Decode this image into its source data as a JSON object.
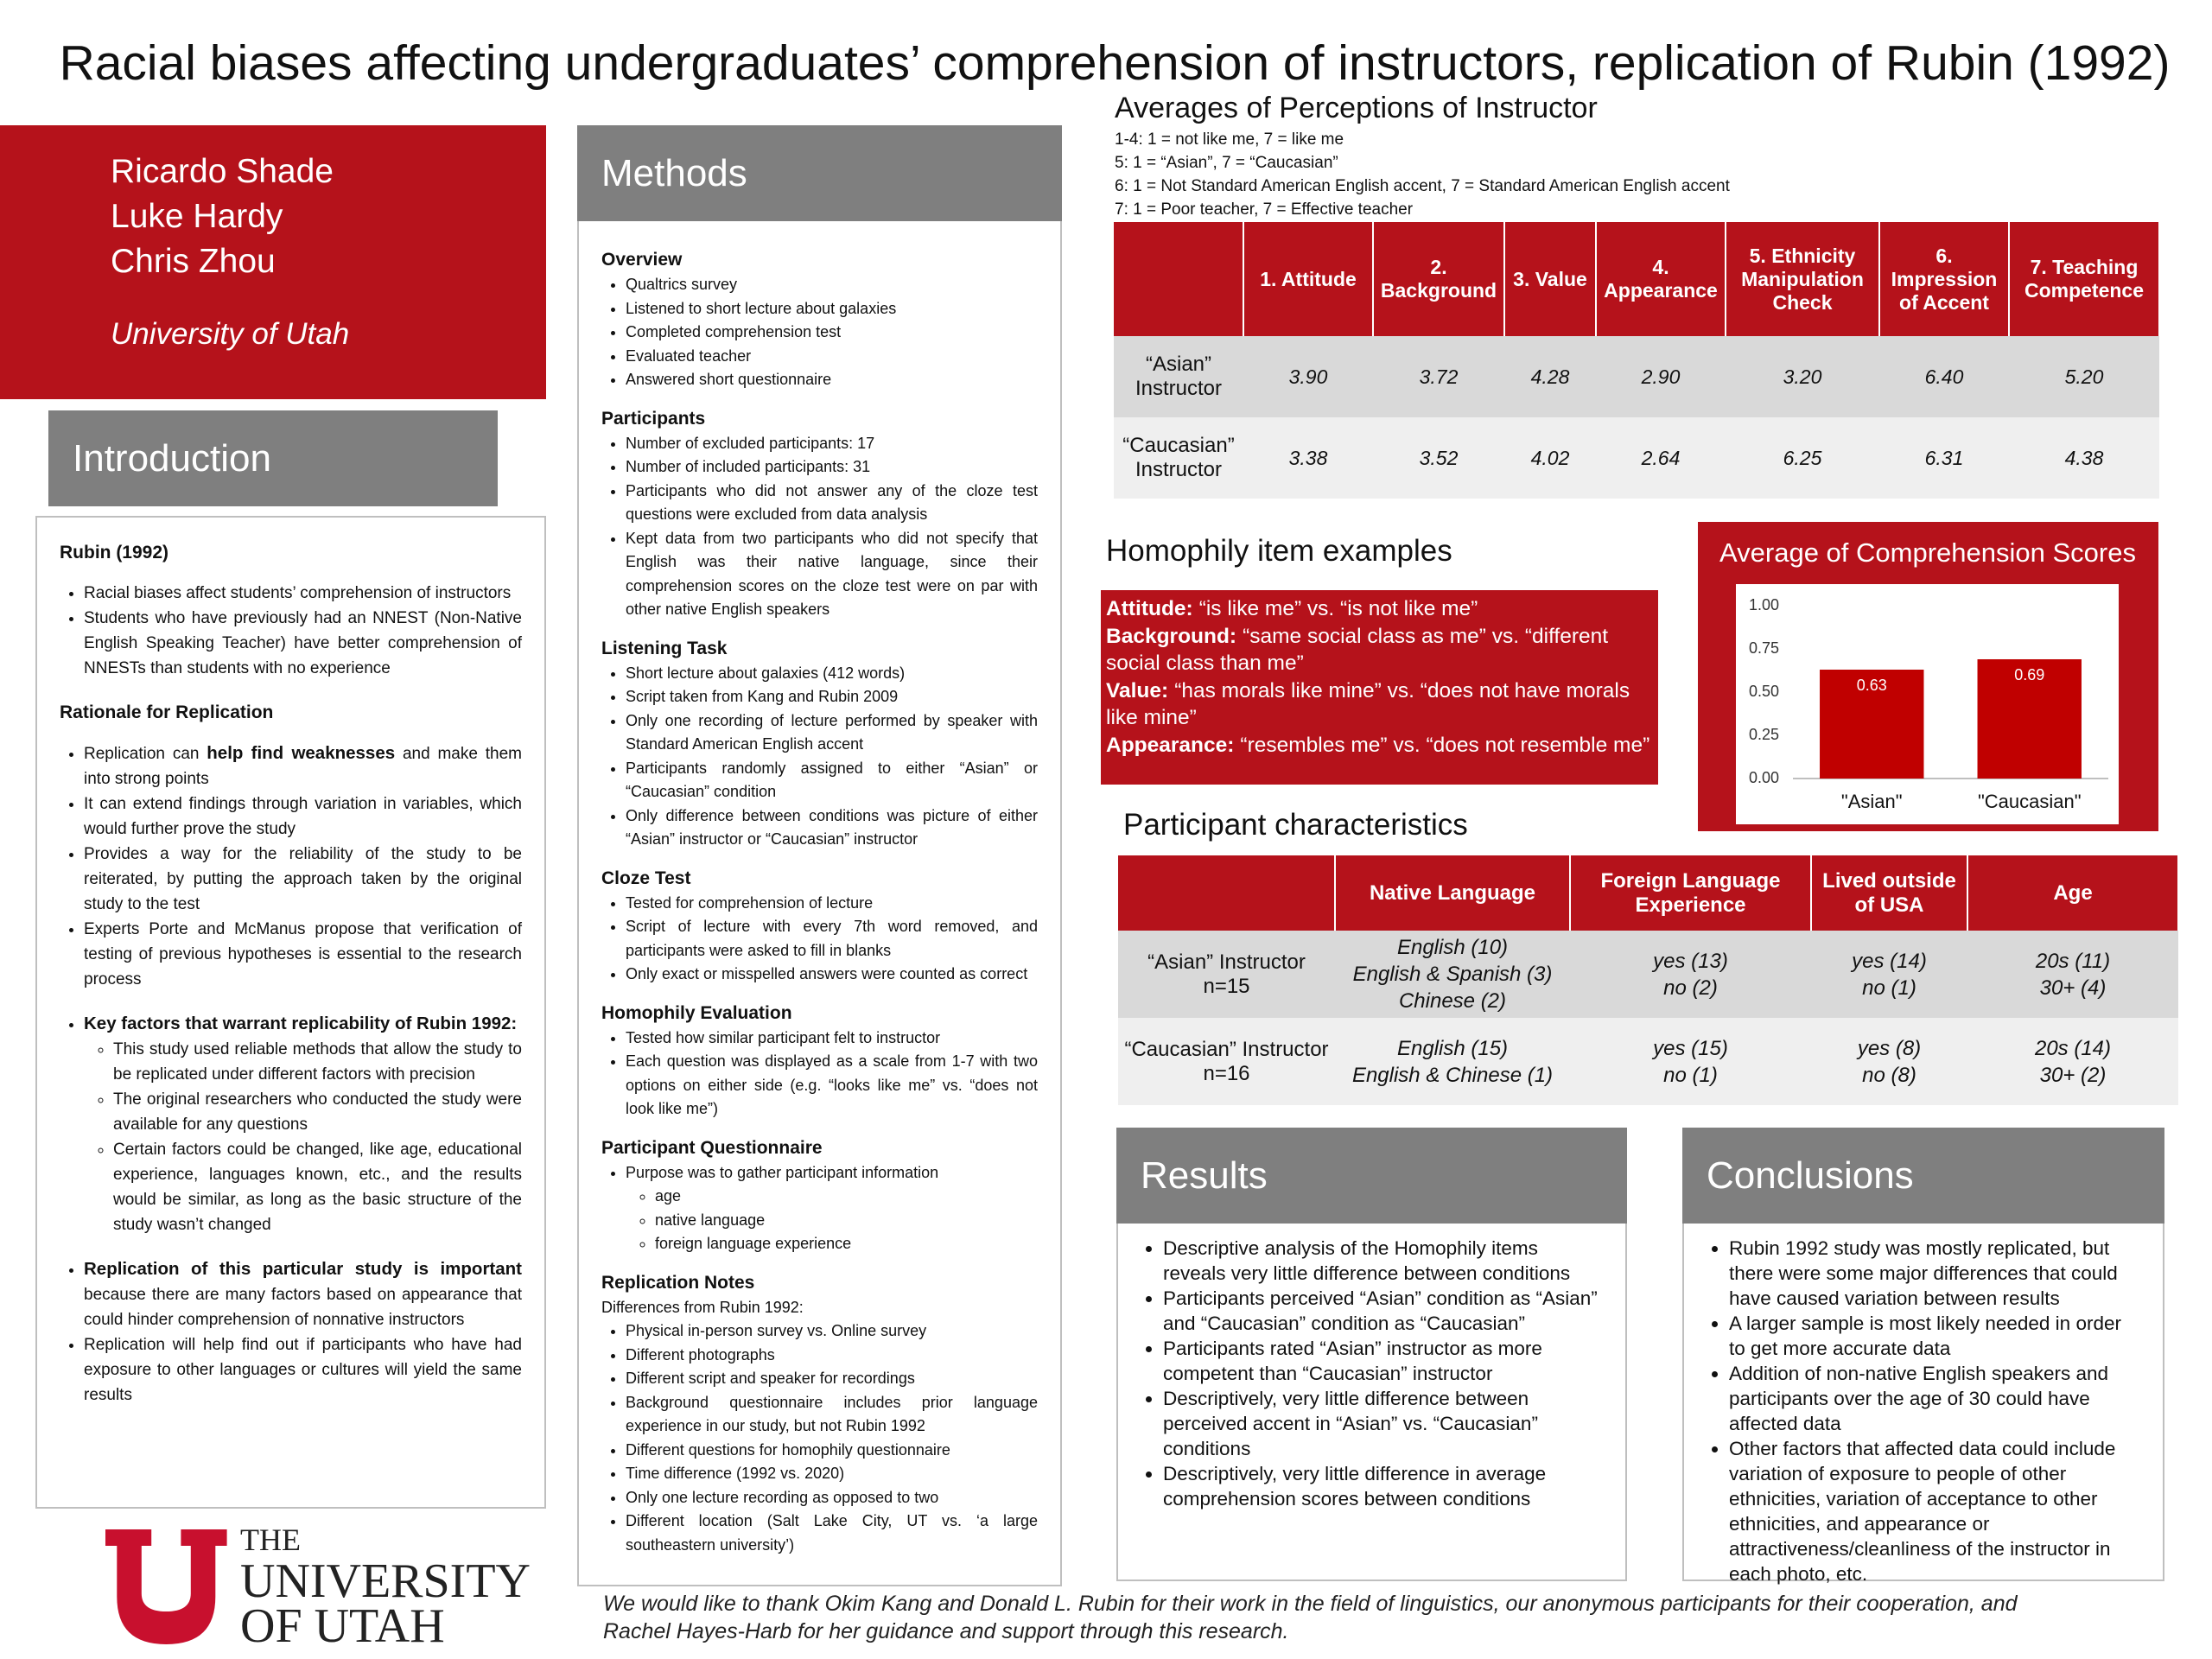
{
  "title": "Racial biases affecting undergraduates’ comprehension of instructors, replication of Rubin (1992)",
  "authors": [
    "Ricardo Shade",
    "Luke Hardy",
    "Chris Zhou"
  ],
  "affiliation": "University of Utah",
  "introduction": {
    "header": "Introduction",
    "blocks": [
      {
        "heading": "Rubin (1992)",
        "items": [
          "Racial biases affect students’ comprehension of instructors",
          "Students who have previously had an NNEST (Non-Native English Speaking Teacher) have better comprehension of NNESTs than students with no experience"
        ]
      },
      {
        "heading": "Rationale for Replication",
        "items": [
          {
            "runs": [
              "Replication can ",
              {
                "bold": "help find weaknesses"
              },
              " and make them into strong points"
            ]
          },
          "It can extend findings through variation in variables, which would further prove the study",
          "Provides a way for the reliability of the study to be reiterated, by putting the approach taken by the original study to the test",
          "Experts Porte and McManus propose that verification of testing of previous hypotheses is essential to the research process"
        ]
      },
      {
        "items": [
          {
            "runs": [
              {
                "bold": "Key factors that warrant replicability of Rubin 1992:"
              }
            ],
            "sub": [
              "This study used reliable methods that allow the study to be replicated under different factors with precision",
              "The original researchers who conducted the study were available for any questions",
              "Certain factors could be changed, like age, educational experience, languages known, etc., and the results would be similar, as long as the basic structure of the study wasn’t changed"
            ]
          }
        ]
      },
      {
        "items": [
          {
            "runs": [
              {
                "bold": "Replication of this particular study is important"
              },
              " because there are many factors based on appearance that could hinder comprehension of nonnative instructors"
            ]
          },
          "Replication will help find out if participants who have had exposure to other languages or cultures will yield the same results"
        ]
      }
    ]
  },
  "methods": {
    "header": "Methods",
    "sections": [
      {
        "heading": "Overview",
        "items": [
          "Qualtrics survey",
          "Listened to short lecture about galaxies",
          "Completed comprehension test",
          "Evaluated teacher",
          "Answered short questionnaire"
        ]
      },
      {
        "heading": "Participants",
        "items": [
          "Number of excluded participants: 17",
          "Number of included participants: 31",
          "Participants who did not answer any of the cloze test questions were excluded from data analysis",
          "Kept data from two participants who did not specify that English was their native language, since their comprehension scores on the cloze test were on par with other native English speakers"
        ]
      },
      {
        "heading": "Listening Task",
        "items": [
          "Short lecture about galaxies (412 words)",
          "Script taken from Kang and Rubin 2009",
          "Only one recording of lecture performed by speaker with Standard American English accent",
          "Participants randomly assigned to either “Asian” or “Caucasian” condition",
          "Only difference between conditions was picture of either “Asian” instructor or “Caucasian” instructor"
        ]
      },
      {
        "heading": "Cloze Test",
        "items": [
          "Tested for comprehension of lecture",
          "Script of lecture with every 7th word removed, and participants were asked to fill in blanks",
          "Only exact or misspelled answers were counted as correct"
        ]
      },
      {
        "heading": "Homophily Evaluation",
        "items": [
          "Tested how similar participant felt to instructor",
          "Each question was displayed as a scale from 1-7 with two options on either side (e.g. “looks like me” vs. “does not look like me”)"
        ]
      },
      {
        "heading": "Participant Questionnaire",
        "items": [
          {
            "runs": [
              "Purpose was to gather participant information"
            ],
            "sub": [
              "age",
              "native language",
              "foreign language experience"
            ]
          }
        ]
      },
      {
        "heading": "Replication Notes",
        "lead": "Differences from Rubin 1992:",
        "items": [
          "Physical in-person survey vs. Online survey",
          "Different photographs",
          "Different script and speaker for recordings",
          "Background questionnaire includes prior language experience in our study, but not Rubin 1992",
          "Different questions for homophily questionnaire",
          "Time difference (1992 vs. 2020)",
          "Only one lecture recording as opposed to two",
          "Different location (Salt Lake City, UT vs. ‘a large southeastern university’)"
        ]
      }
    ]
  },
  "perceptions": {
    "title": "Averages of Perceptions of Instructor",
    "notes": [
      "1-4: 1 = not like me, 7 = like me",
      "5: 1 = “Asian”, 7 = “Caucasian”",
      "6: 1 = Not Standard American English accent, 7 = Standard American English accent",
      "7: 1 = Poor teacher, 7 = Effective teacher"
    ],
    "columns": [
      "1. Attitude",
      "2. Background",
      "3. Value",
      "4. Appearance",
      "5. Ethnicity Manipulation Check",
      "6. Impression of Accent",
      "7. Teaching Competence"
    ],
    "rows": [
      {
        "label": "“Asian” Instructor",
        "values": [
          "3.90",
          "3.72",
          "4.28",
          "2.90",
          "3.20",
          "6.40",
          "5.20"
        ]
      },
      {
        "label": "“Caucasian” Instructor",
        "values": [
          "3.38",
          "3.52",
          "4.02",
          "2.64",
          "6.25",
          "6.31",
          "4.38"
        ]
      }
    ]
  },
  "homophily": {
    "title": "Homophily item examples",
    "items": [
      {
        "label": "Attitude:",
        "text": "“is like me” vs. “is not like me”"
      },
      {
        "label": "Background:",
        "text": "“same social class as me” vs. “different social class than me”"
      },
      {
        "label": "Value:",
        "text": "“has morals like mine” vs. “does not have morals like mine”"
      },
      {
        "label": "Appearance:",
        "text": "“resembles me” vs. “does not resemble me”"
      }
    ]
  },
  "chart_data": {
    "type": "bar",
    "title": "Average of Comprehension Scores",
    "categories": [
      "\"Asian\"",
      "\"Caucasian\""
    ],
    "values": [
      0.63,
      0.69
    ],
    "color": "#c00000",
    "ylim": [
      0,
      1
    ],
    "yticks": [
      {
        "value": 0,
        "label": "0.00"
      },
      {
        "value": 0.25,
        "label": "0.25"
      },
      {
        "value": 0.5,
        "label": "0.50"
      },
      {
        "value": 0.75,
        "label": "0.75"
      },
      {
        "value": 1,
        "label": "1.00"
      }
    ],
    "grid": false
  },
  "participants": {
    "title": "Participant characteristics",
    "columns": [
      "Native Language",
      "Foreign Language Experience",
      "Lived outside of USA",
      "Age"
    ],
    "rows": [
      {
        "label": [
          "“Asian” Instructor",
          "n=15"
        ],
        "cells": [
          [
            "English (10)",
            "English & Spanish (3)",
            "Chinese (2)"
          ],
          [
            "yes (13)",
            "no (2)"
          ],
          [
            "yes (14)",
            "no (1)"
          ],
          [
            "20s (11)",
            "30+ (4)"
          ]
        ]
      },
      {
        "label": [
          "“Caucasian” Instructor",
          "n=16"
        ],
        "cells": [
          [
            "English (15)",
            "English & Chinese (1)"
          ],
          [
            "yes (15)",
            "no (1)"
          ],
          [
            "yes (8)",
            "no (8)"
          ],
          [
            "20s (14)",
            "30+ (2)"
          ]
        ]
      }
    ]
  },
  "results": {
    "header": "Results",
    "items": [
      "Descriptive analysis of the Homophily items reveals very little difference between conditions",
      "Participants perceived “Asian” condition as “Asian” and “Caucasian” condition as “Caucasian”",
      "Participants rated “Asian” instructor as more competent than “Caucasian” instructor",
      "Descriptively, very little difference between perceived accent in “Asian” vs. “Caucasian” conditions",
      "Descriptively, very little difference in average comprehension scores between conditions"
    ]
  },
  "conclusions": {
    "header": "Conclusions",
    "items": [
      "Rubin 1992 study was mostly replicated, but there were some major differences that could have caused variation between results",
      "A larger sample is most likely needed in order to get more accurate data",
      "Addition of non-native English speakers and participants over the age of 30 could have affected data",
      "Other factors that affected data could include variation of exposure to people of other ethnicities, variation of acceptance to other ethnicities, and appearance or attractiveness/cleanliness of the instructor in each photo, etc."
    ]
  },
  "acknowledgment": "We would like to thank Okim Kang and Donald L. Rubin for their work in the field of linguistics, our anonymous participants for their cooperation, and Rachel Hayes-Harb for her guidance and support through this research.",
  "logo": [
    "THE",
    "UNIVERSITY",
    "OF UTAH"
  ]
}
